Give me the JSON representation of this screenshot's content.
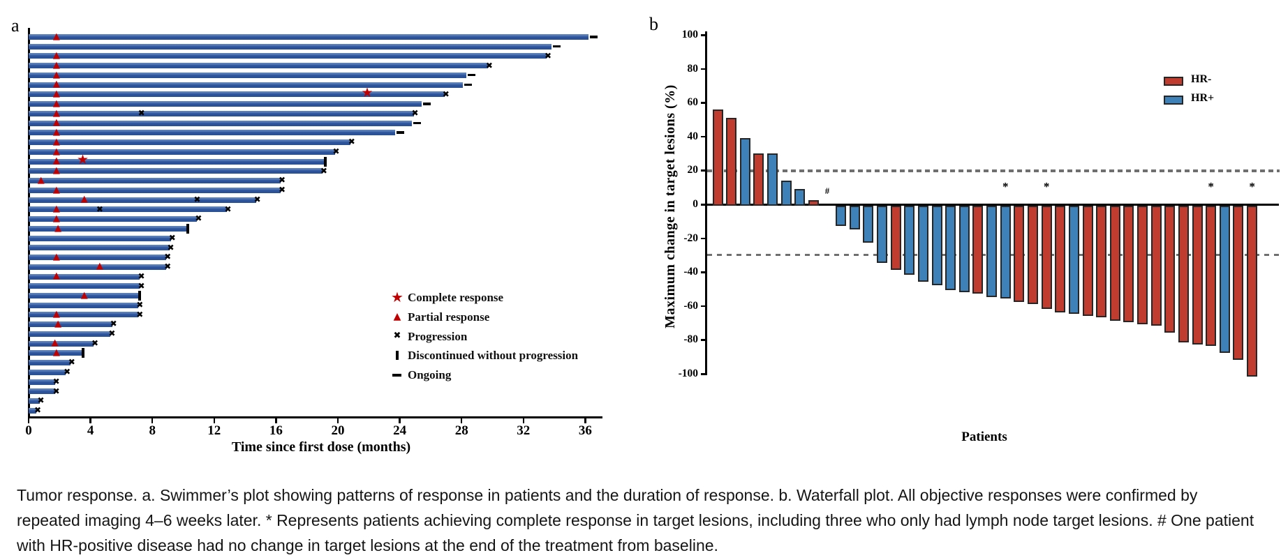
{
  "figure": {
    "panel_a_label": "a",
    "panel_b_label": "b"
  },
  "caption": {
    "text": "Tumor response. a. Swimmer’s plot showing patterns of response in patients and the duration of response. b. Waterfall plot. All objective responses were confirmed by repeated imaging 4–6 weeks later. * Represents patients achieving complete response in target lesions, including three who only had lymph node target lesions. # One patient with HR-positive disease had no change in target lesions at the end of the treatment from baseline."
  },
  "colors": {
    "swimmer_bar": "#2d549c",
    "marker_red": "#c00000",
    "hr_negative": "#c03c2e",
    "hr_positive": "#3e80b8",
    "bar_border": "#262626",
    "reference_line": "#6f6f6f",
    "axis": "#000000"
  },
  "chart_data": [
    {
      "type": "swimmer",
      "panel": "a",
      "xlabel": "Time since first dose (months)",
      "x_ticks": [
        0,
        4,
        8,
        12,
        16,
        20,
        24,
        28,
        32,
        36
      ],
      "xlim": [
        0,
        37
      ],
      "grid": false,
      "legend_position": "lower-right-inside",
      "legend": [
        {
          "marker": "star",
          "label": "Complete response"
        },
        {
          "marker": "triangle",
          "label": "Partial response"
        },
        {
          "marker": "x",
          "label": "Progression"
        },
        {
          "marker": "bar",
          "label": "Discontinued without progression"
        },
        {
          "marker": "dash",
          "label": "Ongoing"
        }
      ],
      "patients": [
        {
          "months": 36.2,
          "events": [
            {
              "t": 1.8,
              "type": "partial_response"
            }
          ],
          "end": "ongoing"
        },
        {
          "months": 33.8,
          "events": [],
          "end": "ongoing"
        },
        {
          "months": 33.5,
          "events": [
            {
              "t": 1.8,
              "type": "partial_response"
            }
          ],
          "end": "progression"
        },
        {
          "months": 29.7,
          "events": [
            {
              "t": 1.8,
              "type": "partial_response"
            }
          ],
          "end": "progression"
        },
        {
          "months": 28.3,
          "events": [
            {
              "t": 1.8,
              "type": "partial_response"
            }
          ],
          "end": "ongoing"
        },
        {
          "months": 28.1,
          "events": [
            {
              "t": 1.8,
              "type": "partial_response"
            }
          ],
          "end": "ongoing"
        },
        {
          "months": 26.9,
          "events": [
            {
              "t": 1.8,
              "type": "partial_response"
            },
            {
              "t": 21.9,
              "type": "complete_response"
            }
          ],
          "end": "progression"
        },
        {
          "months": 25.4,
          "events": [
            {
              "t": 1.8,
              "type": "partial_response"
            }
          ],
          "end": "ongoing"
        },
        {
          "months": 24.9,
          "events": [
            {
              "t": 1.8,
              "type": "partial_response"
            },
            {
              "t": 7.3,
              "type": "progression"
            }
          ],
          "end": "progression"
        },
        {
          "months": 24.8,
          "events": [
            {
              "t": 1.8,
              "type": "partial_response"
            }
          ],
          "end": "ongoing"
        },
        {
          "months": 23.7,
          "events": [
            {
              "t": 1.8,
              "type": "partial_response"
            }
          ],
          "end": "ongoing"
        },
        {
          "months": 20.8,
          "events": [
            {
              "t": 1.8,
              "type": "partial_response"
            }
          ],
          "end": "progression"
        },
        {
          "months": 19.8,
          "events": [
            {
              "t": 1.8,
              "type": "partial_response"
            }
          ],
          "end": "progression"
        },
        {
          "months": 19.2,
          "events": [
            {
              "t": 1.8,
              "type": "partial_response"
            },
            {
              "t": 3.5,
              "type": "complete_response"
            }
          ],
          "end": "discontinued"
        },
        {
          "months": 19.0,
          "events": [
            {
              "t": 1.8,
              "type": "partial_response"
            }
          ],
          "end": "progression"
        },
        {
          "months": 16.3,
          "events": [
            {
              "t": 0.8,
              "type": "partial_response"
            }
          ],
          "end": "progression"
        },
        {
          "months": 16.3,
          "events": [
            {
              "t": 1.8,
              "type": "partial_response"
            }
          ],
          "end": "progression"
        },
        {
          "months": 14.7,
          "events": [
            {
              "t": 3.6,
              "type": "partial_response"
            },
            {
              "t": 10.9,
              "type": "progression"
            }
          ],
          "end": "progression"
        },
        {
          "months": 12.8,
          "events": [
            {
              "t": 1.8,
              "type": "partial_response"
            },
            {
              "t": 4.6,
              "type": "progression"
            }
          ],
          "end": "progression"
        },
        {
          "months": 10.9,
          "events": [
            {
              "t": 1.8,
              "type": "partial_response"
            }
          ],
          "end": "progression"
        },
        {
          "months": 10.3,
          "events": [
            {
              "t": 1.9,
              "type": "partial_response"
            }
          ],
          "end": "discontinued"
        },
        {
          "months": 9.2,
          "events": [],
          "end": "progression"
        },
        {
          "months": 9.1,
          "events": [],
          "end": "progression"
        },
        {
          "months": 8.9,
          "events": [
            {
              "t": 1.8,
              "type": "partial_response"
            }
          ],
          "end": "progression"
        },
        {
          "months": 8.9,
          "events": [
            {
              "t": 4.6,
              "type": "partial_response"
            }
          ],
          "end": "progression"
        },
        {
          "months": 7.2,
          "events": [
            {
              "t": 1.8,
              "type": "partial_response"
            }
          ],
          "end": "progression"
        },
        {
          "months": 7.2,
          "events": [],
          "end": "progression"
        },
        {
          "months": 7.2,
          "events": [
            {
              "t": 3.6,
              "type": "partial_response"
            }
          ],
          "end": "discontinued"
        },
        {
          "months": 7.1,
          "events": [],
          "end": "progression"
        },
        {
          "months": 7.1,
          "events": [
            {
              "t": 1.8,
              "type": "partial_response"
            }
          ],
          "end": "progression"
        },
        {
          "months": 5.4,
          "events": [
            {
              "t": 1.9,
              "type": "partial_response"
            }
          ],
          "end": "progression"
        },
        {
          "months": 5.3,
          "events": [],
          "end": "progression"
        },
        {
          "months": 4.2,
          "events": [
            {
              "t": 1.7,
              "type": "partial_response"
            }
          ],
          "end": "progression"
        },
        {
          "months": 3.5,
          "events": [
            {
              "t": 1.8,
              "type": "partial_response"
            }
          ],
          "end": "discontinued"
        },
        {
          "months": 2.7,
          "events": [],
          "end": "progression"
        },
        {
          "months": 2.4,
          "events": [],
          "end": "progression"
        },
        {
          "months": 1.7,
          "events": [],
          "end": "progression"
        },
        {
          "months": 1.7,
          "events": [],
          "end": "progression"
        },
        {
          "months": 0.7,
          "events": [],
          "end": "progression"
        },
        {
          "months": 0.5,
          "events": [],
          "end": "progression"
        }
      ]
    },
    {
      "type": "bar",
      "subtype": "waterfall",
      "panel": "b",
      "xlabel": "Patients",
      "ylabel": "Maximum change in target lesions (%)",
      "y_ticks": [
        100,
        80,
        60,
        40,
        20,
        0,
        -20,
        -40,
        -60,
        -80,
        -100
      ],
      "ylim": [
        -100,
        100
      ],
      "reference_lines": [
        20,
        -30
      ],
      "legend_position": "upper-right-inside",
      "legend": [
        {
          "label": "HR-",
          "color": "#c03c2e",
          "group": "HR-"
        },
        {
          "label": "HR+",
          "color": "#3e80b8",
          "group": "HR+"
        }
      ],
      "bars": [
        {
          "value": 56,
          "group": "HR-"
        },
        {
          "value": 51,
          "group": "HR-"
        },
        {
          "value": 39,
          "group": "HR+"
        },
        {
          "value": 30,
          "group": "HR-"
        },
        {
          "value": 30,
          "group": "HR+"
        },
        {
          "value": 14,
          "group": "HR+"
        },
        {
          "value": 9,
          "group": "HR+"
        },
        {
          "value": 2.5,
          "group": "HR-"
        },
        {
          "value": 0,
          "group": "HR+",
          "annotation": "#"
        },
        {
          "value": -11,
          "group": "HR+"
        },
        {
          "value": -13,
          "group": "HR+"
        },
        {
          "value": -21,
          "group": "HR+"
        },
        {
          "value": -33,
          "group": "HR+"
        },
        {
          "value": -37,
          "group": "HR-"
        },
        {
          "value": -40,
          "group": "HR+"
        },
        {
          "value": -44,
          "group": "HR+"
        },
        {
          "value": -46,
          "group": "HR+"
        },
        {
          "value": -49,
          "group": "HR+"
        },
        {
          "value": -50,
          "group": "HR+"
        },
        {
          "value": -51,
          "group": "HR-"
        },
        {
          "value": -53,
          "group": "HR+"
        },
        {
          "value": -54,
          "group": "HR+",
          "annotation": "*"
        },
        {
          "value": -56,
          "group": "HR-"
        },
        {
          "value": -57,
          "group": "HR-"
        },
        {
          "value": -60,
          "group": "HR-",
          "annotation": "*"
        },
        {
          "value": -62,
          "group": "HR-"
        },
        {
          "value": -63,
          "group": "HR+"
        },
        {
          "value": -64,
          "group": "HR-"
        },
        {
          "value": -65,
          "group": "HR-"
        },
        {
          "value": -67,
          "group": "HR-"
        },
        {
          "value": -68,
          "group": "HR-"
        },
        {
          "value": -69,
          "group": "HR-"
        },
        {
          "value": -70,
          "group": "HR-"
        },
        {
          "value": -74,
          "group": "HR-"
        },
        {
          "value": -80,
          "group": "HR-"
        },
        {
          "value": -81,
          "group": "HR-"
        },
        {
          "value": -82,
          "group": "HR-",
          "annotation": "*"
        },
        {
          "value": -86,
          "group": "HR+"
        },
        {
          "value": -90,
          "group": "HR-"
        },
        {
          "value": -100,
          "group": "HR-",
          "annotation": "*"
        }
      ]
    }
  ]
}
